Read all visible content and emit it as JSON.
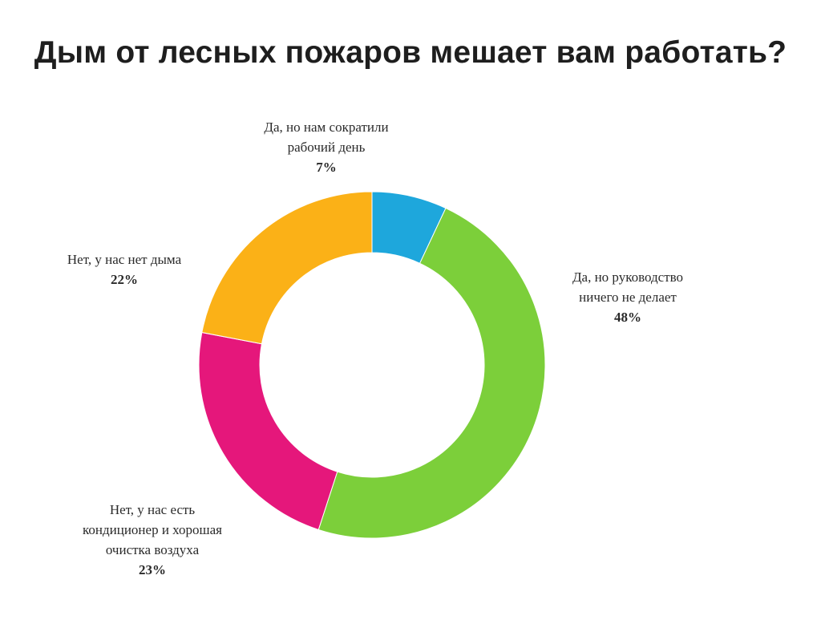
{
  "chart_data": {
    "type": "pie",
    "title": "Дым от лесных пожаров мешает вам работать?",
    "slices": [
      {
        "label_lines": [
          "Да, но нам сократили",
          "рабочий день"
        ],
        "value": 7,
        "value_label": "7%",
        "color": "#1ea7dc"
      },
      {
        "label_lines": [
          "Да, но руководство",
          "ничего не делает"
        ],
        "value": 48,
        "value_label": "48%",
        "color": "#7ccf3a"
      },
      {
        "label_lines": [
          "Нет, у нас есть",
          "кондиционер и хорошая",
          "очистка воздуха"
        ],
        "value": 23,
        "value_label": "23%",
        "color": "#e5177b"
      },
      {
        "label_lines": [
          "Нет, у нас нет дыма"
        ],
        "value": 22,
        "value_label": "22%",
        "color": "#fbb117"
      }
    ],
    "start_angle_deg": 0,
    "direction": "clockwise",
    "donut": true,
    "legend": "none"
  }
}
